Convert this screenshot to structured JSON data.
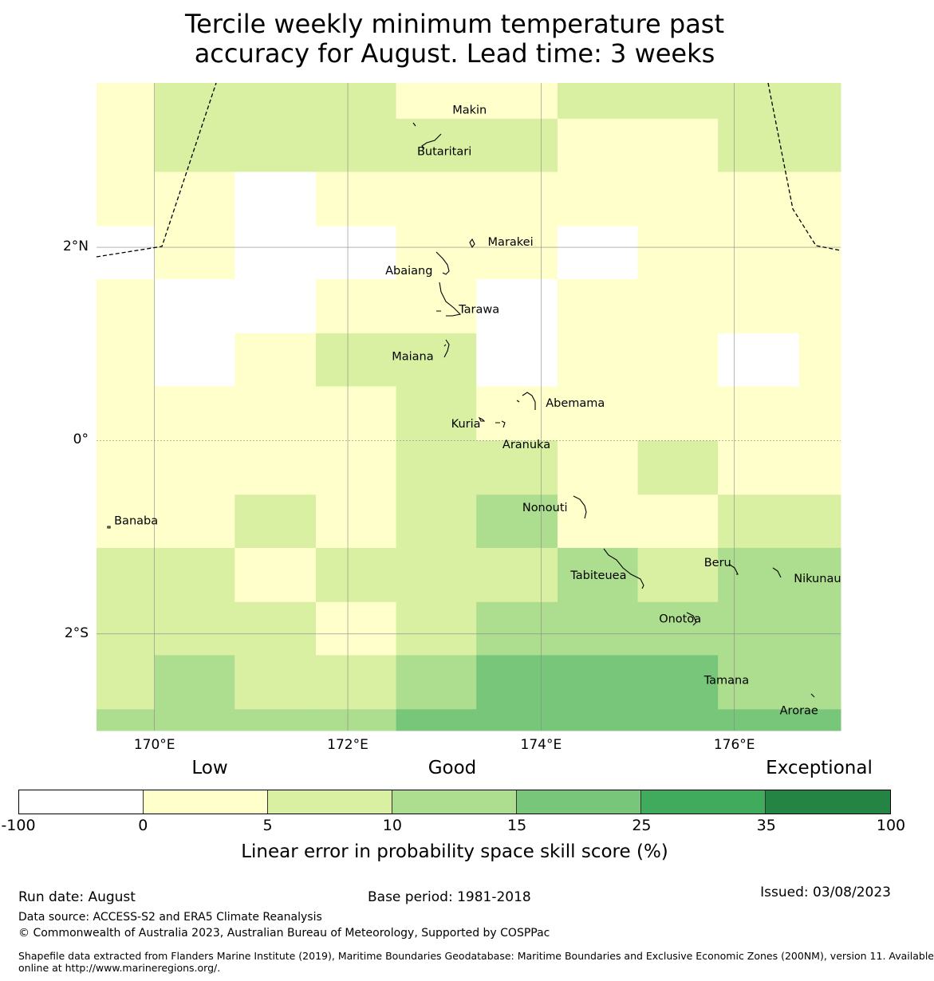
{
  "title_line1": "Tercile weekly minimum temperature past",
  "title_line2": "accuracy for August. Lead time: 3 weeks",
  "map": {
    "lon_range": [
      169.4,
      177.1
    ],
    "lat_range": [
      -3.0,
      3.7
    ],
    "lon_ticks": [
      170,
      172,
      174,
      176
    ],
    "lat_ticks": [
      2,
      0,
      -2
    ],
    "lon_tick_labels": [
      "170°E",
      "172°E",
      "174°E",
      "176°E"
    ],
    "lat_tick_labels": [
      "2°N",
      "0°",
      "2°S"
    ],
    "grid_cols_lon_edges": [
      169.4,
      170.0,
      170.83,
      171.67,
      172.5,
      173.33,
      174.17,
      175.0,
      175.83,
      176.67,
      177.1
    ],
    "grid_rows_lat_edges": [
      3.7,
      3.33,
      2.78,
      2.22,
      1.67,
      1.11,
      0.56,
      0.0,
      -0.56,
      -1.11,
      -1.67,
      -2.22,
      -2.78,
      -3.0
    ],
    "skill_class_grid": [
      [
        1,
        2,
        2,
        2,
        1,
        1,
        2,
        2,
        2,
        2
      ],
      [
        1,
        2,
        2,
        2,
        2,
        2,
        1,
        1,
        2,
        2
      ],
      [
        1,
        1,
        0,
        1,
        1,
        1,
        1,
        1,
        1,
        1
      ],
      [
        0,
        1,
        0,
        0,
        1,
        1,
        0,
        1,
        1,
        1
      ],
      [
        1,
        0,
        0,
        1,
        1,
        0,
        1,
        1,
        1,
        1
      ],
      [
        1,
        0,
        1,
        2,
        2,
        0,
        1,
        1,
        0,
        1
      ],
      [
        1,
        1,
        1,
        1,
        2,
        1,
        1,
        1,
        1,
        1
      ],
      [
        1,
        1,
        1,
        1,
        2,
        2,
        1,
        2,
        1,
        1
      ],
      [
        1,
        1,
        2,
        1,
        2,
        3,
        1,
        1,
        2,
        2
      ],
      [
        2,
        2,
        1,
        2,
        2,
        2,
        3,
        2,
        3,
        3
      ],
      [
        2,
        2,
        2,
        1,
        2,
        3,
        3,
        3,
        3,
        3
      ],
      [
        2,
        3,
        2,
        2,
        3,
        4,
        4,
        4,
        3,
        3
      ],
      [
        3,
        3,
        3,
        3,
        4,
        4,
        4,
        4,
        4,
        4
      ]
    ],
    "places": [
      {
        "name": "Makin",
        "lon": 173.0,
        "lat": 3.35
      },
      {
        "name": "Butaritari",
        "lon": 172.8,
        "lat": 3.07
      },
      {
        "name": "Marakei",
        "lon": 173.3,
        "lat": 2.0
      },
      {
        "name": "Abaiang",
        "lon": 172.9,
        "lat": 1.85
      },
      {
        "name": "Tarawa",
        "lon": 173.0,
        "lat": 1.4
      },
      {
        "name": "Maiana",
        "lon": 173.0,
        "lat": 0.9
      },
      {
        "name": "Abemama",
        "lon": 173.9,
        "lat": 0.4
      },
      {
        "name": "Kuria",
        "lon": 173.4,
        "lat": 0.22
      },
      {
        "name": "Aranuka",
        "lon": 173.6,
        "lat": 0.17
      },
      {
        "name": "Nonouti",
        "lon": 174.4,
        "lat": -0.65
      },
      {
        "name": "Banaba",
        "lon": 169.5,
        "lat": -0.85
      },
      {
        "name": "Tabiteuea",
        "lon": 174.8,
        "lat": -1.35
      },
      {
        "name": "Beru",
        "lon": 176.0,
        "lat": -1.3
      },
      {
        "name": "Nikunau",
        "lon": 176.45,
        "lat": -1.35
      },
      {
        "name": "Onotoa",
        "lon": 175.55,
        "lat": -1.85
      },
      {
        "name": "Tamana",
        "lon": 176.0,
        "lat": -2.5
      },
      {
        "name": "Arorae",
        "lon": 176.8,
        "lat": -2.65
      }
    ]
  },
  "categories": {
    "low": "Low",
    "good": "Good",
    "exceptional": "Exceptional"
  },
  "colorbar": {
    "colors": [
      "#ffffff",
      "#ffffcc",
      "#d9f0a3",
      "#addd8e",
      "#78c679",
      "#41ab5d",
      "#238443"
    ],
    "tick_labels": [
      "-100",
      "0",
      "5",
      "10",
      "15",
      "25",
      "35",
      "100"
    ],
    "label": "Linear error in probability space skill score (%)"
  },
  "footer": {
    "run_date": "Run date: August",
    "base_period": "Base period: 1981-2018",
    "issued": "Issued: 03/08/2023",
    "data_source": "Data source: ACCESS-S2 and ERA5 Climate Reanalysis",
    "copyright": "© Commonwealth of Australia 2023, Australian Bureau of Meteorology, Supported by COSPPac",
    "shapefile_line1": "Shapefile data extracted from Flanders Marine Institute (2019), Maritime Boundaries Geodatabase: Maritime Boundaries and Exclusive Economic Zones (200NM), version 11. Available",
    "shapefile_line2": "online at http://www.marineregions.org/."
  }
}
